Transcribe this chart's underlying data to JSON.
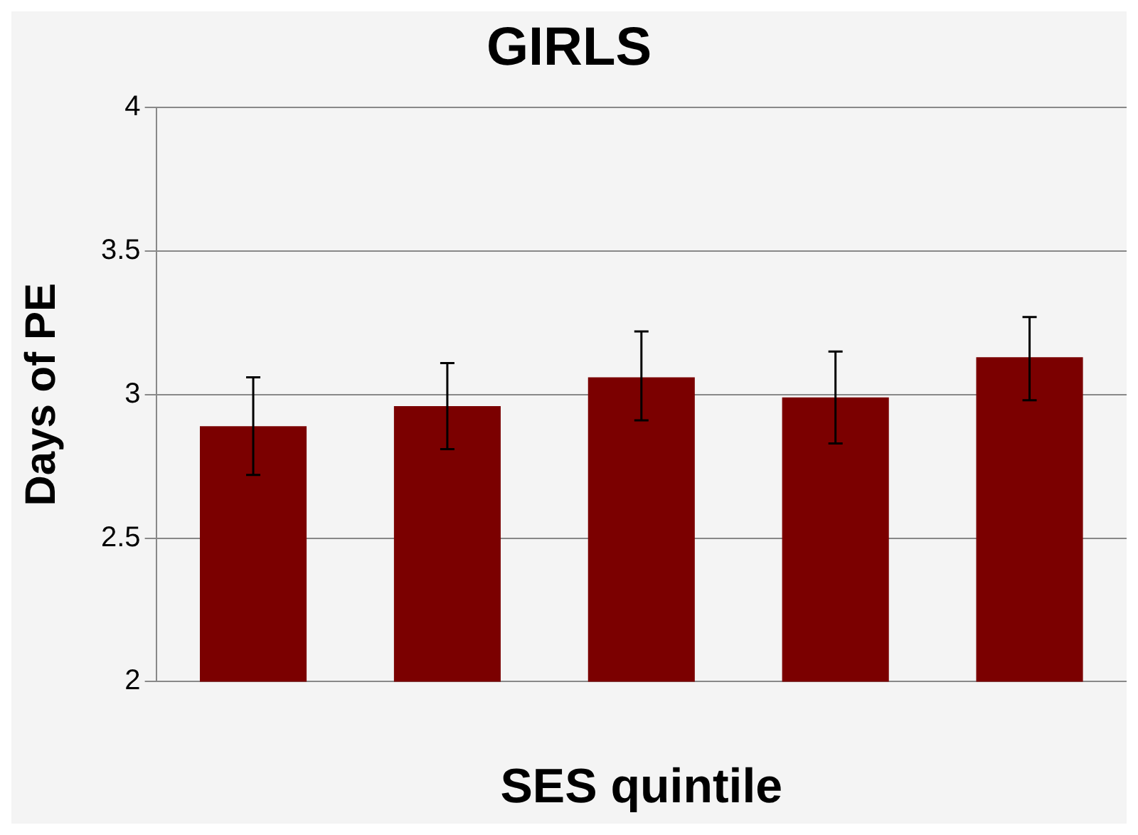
{
  "chart_data": {
    "type": "bar",
    "title": "GIRLS",
    "xlabel": "SES quintile",
    "ylabel": "Days of PE",
    "categories": [
      null,
      null,
      null,
      null,
      null
    ],
    "values": [
      2.89,
      2.96,
      3.06,
      2.99,
      3.13
    ],
    "errors": [
      [
        2.72,
        3.06
      ],
      [
        2.81,
        3.11
      ],
      [
        2.91,
        3.22
      ],
      [
        2.83,
        3.15
      ],
      [
        2.98,
        3.27
      ]
    ],
    "color": "#7b0000",
    "ylim": [
      2,
      4
    ],
    "yticks": [
      2,
      2.5,
      3,
      3.5,
      4
    ],
    "grid": "y",
    "legend": false
  }
}
